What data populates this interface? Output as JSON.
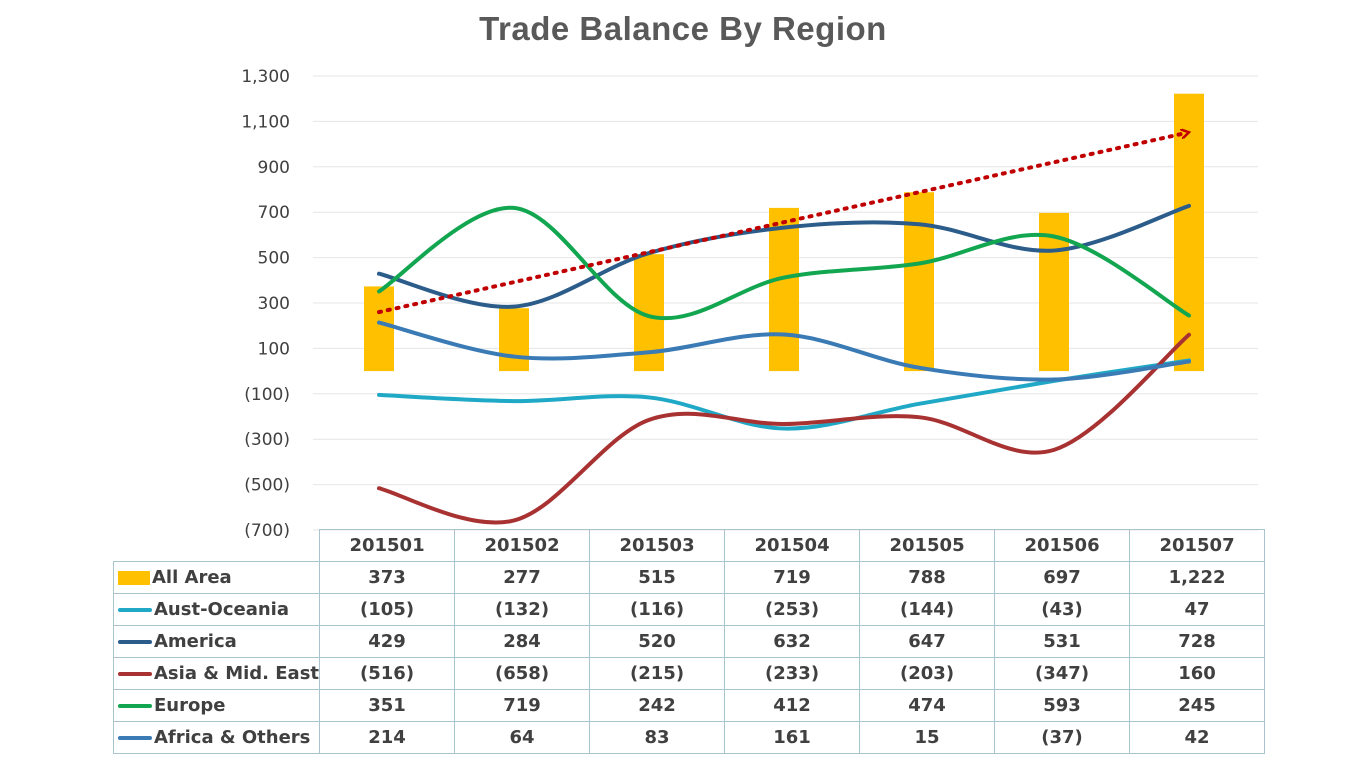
{
  "chart_data": {
    "type": "bar+line",
    "title": "Trade Balance By Region",
    "categories": [
      "201501",
      "201502",
      "201503",
      "201504",
      "201505",
      "201506",
      "201507"
    ],
    "ylim": [
      -700,
      1300
    ],
    "yticks": [
      "1,300",
      "1,100",
      "900",
      "700",
      "500",
      "300",
      "100",
      "(100)",
      "(300)",
      "(500)",
      "(700)"
    ],
    "ytick_values": [
      1300,
      1100,
      900,
      700,
      500,
      300,
      100,
      -100,
      -300,
      -500,
      -700
    ],
    "grid": true,
    "legend": "data-table",
    "trend_arrow": {
      "from": 260,
      "to": 1050,
      "color": "#c00000",
      "style": "dotted"
    },
    "series": [
      {
        "name": "All Area",
        "kind": "bar",
        "color": "#ffc000",
        "values": [
          373,
          277,
          515,
          719,
          788,
          697,
          1222
        ],
        "labels": [
          "373",
          "277",
          "515",
          "719",
          "788",
          "697",
          "1,222"
        ]
      },
      {
        "name": "Aust-Oceania",
        "kind": "line",
        "color": "#1fa9c6",
        "values": [
          -105,
          -132,
          -116,
          -253,
          -144,
          -43,
          47
        ],
        "labels": [
          "(105)",
          "(132)",
          "(116)",
          "(253)",
          "(144)",
          "(43)",
          "47"
        ]
      },
      {
        "name": "America",
        "kind": "line",
        "color": "#2b5c8a",
        "values": [
          429,
          284,
          520,
          632,
          647,
          531,
          728
        ],
        "labels": [
          "429",
          "284",
          "520",
          "632",
          "647",
          "531",
          "728"
        ]
      },
      {
        "name": "Asia & Mid. East",
        "kind": "line",
        "color": "#a83232",
        "values": [
          -516,
          -658,
          -215,
          -233,
          -203,
          -347,
          160
        ],
        "labels": [
          "(516)",
          "(658)",
          "(215)",
          "(233)",
          "(203)",
          "(347)",
          "160"
        ]
      },
      {
        "name": "Europe",
        "kind": "line",
        "color": "#12a650",
        "values": [
          351,
          719,
          242,
          412,
          474,
          593,
          245
        ],
        "labels": [
          "351",
          "719",
          "242",
          "412",
          "474",
          "593",
          "245"
        ]
      },
      {
        "name": "Africa & Others",
        "kind": "line",
        "color": "#3a7bb5",
        "values": [
          214,
          64,
          83,
          161,
          15,
          -37,
          42
        ],
        "labels": [
          "214",
          "64",
          "83",
          "161",
          "15",
          "(37)",
          "42"
        ]
      }
    ]
  }
}
